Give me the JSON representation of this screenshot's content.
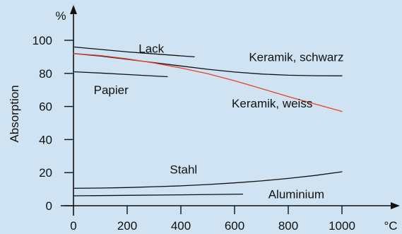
{
  "chart_data": {
    "type": "line",
    "xlabel": "",
    "ylabel": "Absorption",
    "x_unit": "°C",
    "y_unit": "%",
    "xlim": [
      0,
      1000
    ],
    "ylim": [
      0,
      100
    ],
    "x_ticks": [
      0,
      200,
      400,
      600,
      800,
      1000
    ],
    "y_ticks": [
      0,
      20,
      40,
      60,
      80,
      100
    ],
    "grid": false,
    "legend": "none",
    "series": [
      {
        "name": "Lack",
        "color": "#111111",
        "x": [
          0,
          100,
          200,
          300,
          400,
          450
        ],
        "y": [
          96,
          94.5,
          93,
          91.8,
          90.6,
          90
        ]
      },
      {
        "name": "Keramik, schwarz",
        "color": "#111111",
        "x": [
          0,
          100,
          200,
          300,
          400,
          500,
          600,
          700,
          800,
          900,
          1000
        ],
        "y": [
          92,
          90.5,
          88.5,
          86.5,
          84.5,
          82.5,
          80.8,
          79.6,
          78.9,
          78.6,
          78.5
        ]
      },
      {
        "name": "Keramik, weiss",
        "color": "#e8402a",
        "x": [
          0,
          100,
          200,
          300,
          400,
          500,
          600,
          700,
          800,
          900,
          1000
        ],
        "y": [
          92,
          90.8,
          88.8,
          86.3,
          83.3,
          79.8,
          75.5,
          70.8,
          66,
          61.5,
          57
        ]
      },
      {
        "name": "Papier",
        "color": "#111111",
        "x": [
          0,
          100,
          200,
          300,
          350
        ],
        "y": [
          81,
          80.2,
          79.3,
          78.4,
          78
        ]
      },
      {
        "name": "Stahl",
        "color": "#111111",
        "x": [
          0,
          100,
          200,
          300,
          400,
          500,
          600,
          700,
          800,
          900,
          1000
        ],
        "y": [
          10.5,
          10.7,
          11,
          11.5,
          12,
          12.8,
          13.8,
          15,
          16.5,
          18.3,
          20.5
        ]
      },
      {
        "name": "Aluminium",
        "color": "#111111",
        "x": [
          0,
          200,
          400,
          630
        ],
        "y": [
          6,
          6.3,
          6.6,
          7
        ]
      }
    ],
    "labels": [
      {
        "text": "Lack",
        "x": 290,
        "y": 95
      },
      {
        "text": "Keramik, schwarz",
        "x": 830,
        "y": 90
      },
      {
        "text": "Papier",
        "x": 140,
        "y": 70
      },
      {
        "text": "Keramik, weiss",
        "x": 740,
        "y": 62
      },
      {
        "text": "Stahl",
        "x": 410,
        "y": 22
      },
      {
        "text": "Aluminium",
        "x": 830,
        "y": 7
      }
    ]
  }
}
